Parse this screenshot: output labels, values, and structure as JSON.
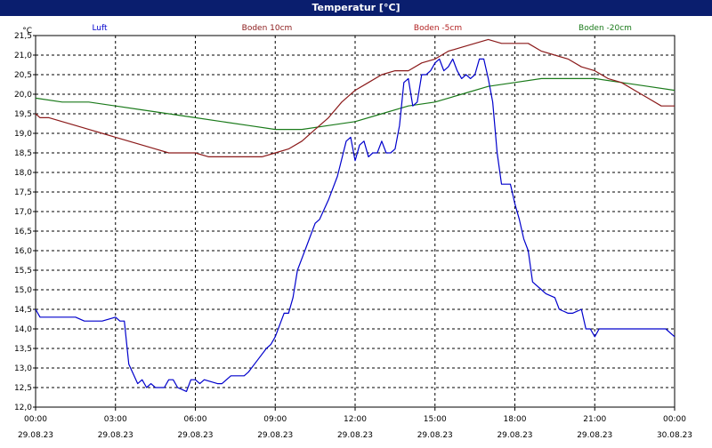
{
  "window": {
    "title": "Temperatur [°C]"
  },
  "colors": {
    "titlebar": "#0a1e6e",
    "grid": "#000000"
  },
  "chart_data": {
    "type": "line",
    "title": "Temperatur [°C]",
    "ylabel": "°C",
    "xlabel": "",
    "ylim": [
      12.0,
      21.5
    ],
    "xlim": [
      "2023-08-29 00:00",
      "2023-08-30 00:00"
    ],
    "grid": true,
    "legend_placement": "top",
    "y_ticks": [
      "12,0",
      "12,5",
      "13,0",
      "13,5",
      "14,0",
      "14,5",
      "15,0",
      "15,5",
      "16,0",
      "16,5",
      "17,0",
      "17,5",
      "18,0",
      "18,5",
      "19,0",
      "19,5",
      "20,0",
      "20,5",
      "21,0",
      "21,5"
    ],
    "x_ticks": [
      {
        "time": "00:00",
        "date": "29.08.23"
      },
      {
        "time": "03:00",
        "date": "29.08.23"
      },
      {
        "time": "06:00",
        "date": "29.08.23"
      },
      {
        "time": "09:00",
        "date": "29.08.23"
      },
      {
        "time": "12:00",
        "date": "29.08.23"
      },
      {
        "time": "15:00",
        "date": "29.08.23"
      },
      {
        "time": "18:00",
        "date": "29.08.23"
      },
      {
        "time": "21:00",
        "date": "29.08.23"
      },
      {
        "time": "00:00",
        "date": "30.08.23"
      }
    ],
    "series": [
      {
        "name": "Luft",
        "color": "#0000cc",
        "x": [
          "00:00",
          "00:10",
          "01:30",
          "01:50",
          "02:00",
          "02:30",
          "03:00",
          "03:10",
          "03:20",
          "03:30",
          "03:50",
          "04:00",
          "04:10",
          "04:20",
          "04:30",
          "04:50",
          "05:00",
          "05:10",
          "05:20",
          "05:40",
          "05:50",
          "06:00",
          "06:10",
          "06:20",
          "06:50",
          "07:00",
          "07:20",
          "07:50",
          "08:00",
          "08:20",
          "08:40",
          "08:50",
          "09:00",
          "09:20",
          "09:30",
          "09:40",
          "09:50",
          "10:00",
          "10:10",
          "10:30",
          "10:40",
          "11:00",
          "11:20",
          "11:40",
          "11:50",
          "12:00",
          "12:10",
          "12:20",
          "12:30",
          "12:40",
          "12:50",
          "13:00",
          "13:10",
          "13:20",
          "13:30",
          "13:40",
          "13:50",
          "14:00",
          "14:10",
          "14:20",
          "14:30",
          "14:40",
          "14:50",
          "15:00",
          "15:10",
          "15:20",
          "15:30",
          "15:40",
          "15:50",
          "16:00",
          "16:10",
          "16:20",
          "16:30",
          "16:40",
          "16:50",
          "17:00",
          "17:10",
          "17:20",
          "17:30",
          "17:40",
          "17:50",
          "18:00",
          "18:10",
          "18:20",
          "18:30",
          "18:40",
          "19:00",
          "19:10",
          "19:30",
          "19:40",
          "20:00",
          "20:10",
          "20:30",
          "20:40",
          "20:50",
          "21:00",
          "21:10",
          "21:30",
          "21:40",
          "22:00",
          "22:20",
          "22:40",
          "22:50",
          "23:00",
          "23:10",
          "23:30",
          "23:40",
          "24:00"
        ],
        "y": [
          14.5,
          14.3,
          14.3,
          14.2,
          14.2,
          14.2,
          14.3,
          14.2,
          14.2,
          13.1,
          12.6,
          12.7,
          12.5,
          12.6,
          12.5,
          12.5,
          12.7,
          12.7,
          12.5,
          12.4,
          12.7,
          12.7,
          12.6,
          12.7,
          12.6,
          12.6,
          12.8,
          12.8,
          12.9,
          13.2,
          13.5,
          13.6,
          13.8,
          14.4,
          14.4,
          14.8,
          15.5,
          15.8,
          16.1,
          16.7,
          16.8,
          17.3,
          17.9,
          18.8,
          18.9,
          18.3,
          18.7,
          18.8,
          18.4,
          18.5,
          18.5,
          18.8,
          18.5,
          18.5,
          18.6,
          19.2,
          20.3,
          20.4,
          19.7,
          19.8,
          20.5,
          20.5,
          20.6,
          20.8,
          20.9,
          20.6,
          20.7,
          20.9,
          20.6,
          20.4,
          20.5,
          20.4,
          20.5,
          20.9,
          20.9,
          20.4,
          19.8,
          18.5,
          17.7,
          17.7,
          17.7,
          17.2,
          16.8,
          16.3,
          16.0,
          15.2,
          15.0,
          14.9,
          14.8,
          14.5,
          14.4,
          14.4,
          14.5,
          14.0,
          14.0,
          13.8,
          14.0,
          14.0,
          14.0,
          14.0,
          14.0,
          14.0,
          14.0,
          14.0,
          14.0,
          14.0,
          14.0,
          13.8
        ]
      },
      {
        "name": "Boden 10cm",
        "color": "#8b1a1a",
        "x": [
          "00:00",
          "00:10",
          "00:30",
          "01:00",
          "01:30",
          "02:00",
          "02:30",
          "03:00",
          "03:30",
          "04:00",
          "04:30",
          "05:00",
          "05:30",
          "06:00",
          "06:30",
          "07:00",
          "07:30",
          "08:00",
          "08:30",
          "09:00",
          "09:30",
          "10:00",
          "10:30",
          "11:00",
          "11:30",
          "12:00",
          "12:30",
          "13:00",
          "13:30",
          "14:00",
          "14:30",
          "15:00",
          "15:30",
          "16:00",
          "16:30",
          "17:00",
          "17:30",
          "18:00",
          "18:30",
          "19:00",
          "19:30",
          "20:00",
          "20:30",
          "21:00",
          "21:30",
          "22:00",
          "22:30",
          "23:00",
          "23:30",
          "24:00"
        ],
        "y": [
          19.5,
          19.4,
          19.4,
          19.3,
          19.2,
          19.1,
          19.0,
          18.9,
          18.8,
          18.7,
          18.6,
          18.5,
          18.5,
          18.5,
          18.4,
          18.4,
          18.4,
          18.4,
          18.4,
          18.5,
          18.6,
          18.8,
          19.1,
          19.4,
          19.8,
          20.1,
          20.3,
          20.5,
          20.6,
          20.6,
          20.8,
          20.9,
          21.1,
          21.2,
          21.3,
          21.4,
          21.3,
          21.3,
          21.3,
          21.1,
          21.0,
          20.9,
          20.7,
          20.6,
          20.4,
          20.3,
          20.1,
          19.9,
          19.7,
          19.7
        ]
      },
      {
        "name": "Boden -5cm",
        "color": "#b22222",
        "x": [],
        "y": []
      },
      {
        "name": "Boden -20cm",
        "color": "#1a7a1a",
        "x": [
          "00:00",
          "01:00",
          "02:00",
          "03:00",
          "04:00",
          "05:00",
          "06:00",
          "07:00",
          "08:00",
          "09:00",
          "10:00",
          "11:00",
          "12:00",
          "13:00",
          "14:00",
          "15:00",
          "16:00",
          "17:00",
          "18:00",
          "19:00",
          "20:00",
          "21:00",
          "22:00",
          "23:00",
          "24:00"
        ],
        "y": [
          19.9,
          19.8,
          19.8,
          19.7,
          19.6,
          19.5,
          19.4,
          19.3,
          19.2,
          19.1,
          19.1,
          19.2,
          19.3,
          19.5,
          19.7,
          19.8,
          20.0,
          20.2,
          20.3,
          20.4,
          20.4,
          20.4,
          20.3,
          20.2,
          20.1
        ]
      }
    ]
  }
}
